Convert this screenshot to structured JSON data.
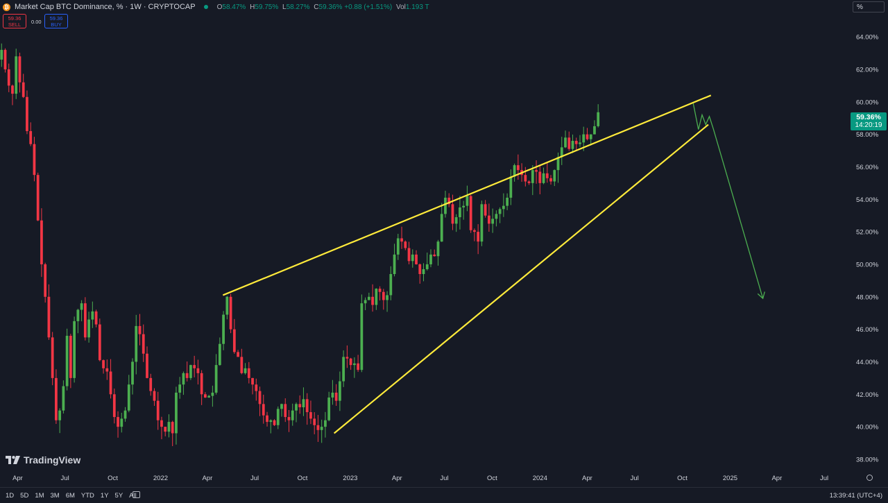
{
  "header": {
    "coin_glyph": "₿",
    "title": "Market Cap BTC Dominance, % · 1W · CRYPTOCAP",
    "open_label": "O",
    "open": "58.47%",
    "high_label": "H",
    "high": "59.75%",
    "low_label": "L",
    "low": "58.27%",
    "close_label": "C",
    "close": "59.36%",
    "change": "+0.88 (+1.51%)",
    "vol_label": "Vol",
    "vol": "1.193 T"
  },
  "trade": {
    "sell_price": "59.36",
    "sell_label": "SELL",
    "spread": "0.00",
    "buy_price": "59.36",
    "buy_label": "BUY"
  },
  "unit_label": "%",
  "price_tag": {
    "price": "59.36%",
    "countdown": "14:20:19",
    "color": "#089981"
  },
  "logo": {
    "text": "TradingView"
  },
  "bottom": {
    "ranges": [
      "1D",
      "5D",
      "1M",
      "3M",
      "6M",
      "YTD",
      "1Y",
      "5Y",
      "All"
    ],
    "clock": "13:39:41 (UTC+4)",
    "calendar_icon": "calendar-icon",
    "settings_icon": "gear-icon"
  },
  "colors": {
    "up": "#4caf50",
    "down": "#f23645",
    "trendline": "#ffeb3b",
    "projection": "#4caf50",
    "background": "#161a25"
  },
  "chart_data": {
    "type": "candlestick",
    "title": "Market Cap BTC Dominance, % · 1W · CRYPTOCAP",
    "ylabel": "%",
    "ylim": [
      37.4,
      65.5
    ],
    "x_range": [
      "2021-02-26",
      "2025-08-10"
    ],
    "yticks": [
      "64.00%",
      "62.00%",
      "60.00%",
      "58.00%",
      "56.00%",
      "54.00%",
      "52.00%",
      "50.00%",
      "48.00%",
      "46.00%",
      "44.00%",
      "42.00%",
      "40.00%",
      "38.00%"
    ],
    "ytick_values": [
      64,
      62,
      60,
      58,
      56,
      54,
      52,
      50,
      48,
      46,
      44,
      42,
      40,
      38
    ],
    "xticks": [
      {
        "label": "Apr",
        "date": "2021-04-01"
      },
      {
        "label": "Jul",
        "date": "2021-07-01"
      },
      {
        "label": "Oct",
        "date": "2021-10-01"
      },
      {
        "label": "2022",
        "date": "2022-01-01"
      },
      {
        "label": "Apr",
        "date": "2022-04-01"
      },
      {
        "label": "Jul",
        "date": "2022-07-01"
      },
      {
        "label": "Oct",
        "date": "2022-10-01"
      },
      {
        "label": "2023",
        "date": "2023-01-01"
      },
      {
        "label": "Apr",
        "date": "2023-04-01"
      },
      {
        "label": "Jul",
        "date": "2023-07-01"
      },
      {
        "label": "Oct",
        "date": "2023-10-01"
      },
      {
        "label": "2024",
        "date": "2024-01-01"
      },
      {
        "label": "Apr",
        "date": "2024-04-01"
      },
      {
        "label": "Jul",
        "date": "2024-07-01"
      },
      {
        "label": "Oct",
        "date": "2024-10-01"
      },
      {
        "label": "2025",
        "date": "2025-01-01"
      },
      {
        "label": "Apr",
        "date": "2025-04-01"
      },
      {
        "label": "Jul",
        "date": "2025-07-01"
      }
    ],
    "series_start_date": "2021-03-01",
    "candle_interval_days": 7,
    "closes": [
      63.2,
      62.0,
      61.0,
      60.5,
      62.8,
      61.2,
      60.3,
      58.2,
      57.4,
      55.5,
      52.7,
      50.0,
      48.0,
      45.5,
      43.0,
      40.4,
      41.0,
      42.5,
      45.6,
      43.0,
      46.5,
      47.2,
      47.6,
      45.5,
      46.6,
      47.1,
      46.3,
      44.1,
      43.6,
      43.4,
      42.0,
      40.6,
      40.0,
      40.5,
      41.0,
      42.6,
      44.0,
      46.2,
      45.7,
      44.5,
      43.0,
      42.2,
      41.6,
      40.4,
      40.0,
      39.7,
      40.3,
      39.6,
      42.1,
      42.6,
      43.3,
      43.0,
      43.8,
      43.6,
      43.3,
      42.0,
      41.8,
      41.9,
      42.1,
      43.8,
      45.1,
      46.9,
      48.0,
      46.0,
      44.6,
      44.3,
      43.3,
      43.6,
      43.0,
      42.6,
      42.2,
      41.4,
      40.7,
      40.3,
      40.4,
      40.1,
      41.1,
      41.4,
      40.6,
      40.4,
      41.0,
      41.4,
      41.2,
      41.7,
      40.9,
      40.5,
      40.1,
      39.8,
      40.0,
      40.4,
      41.8,
      42.1,
      41.6,
      42.8,
      44.3,
      44.2,
      43.8,
      43.9,
      43.5,
      47.6,
      47.8,
      48.0,
      47.5,
      48.5,
      48.3,
      47.8,
      48.1,
      49.4,
      50.6,
      51.6,
      51.4,
      51.0,
      50.2,
      50.6,
      50.0,
      49.4,
      49.7,
      50.0,
      50.6,
      50.5,
      51.4,
      53.1,
      54.1,
      53.7,
      52.5,
      52.9,
      53.5,
      53.6,
      54.2,
      52.1,
      52.0,
      51.4,
      53.7,
      53.0,
      52.5,
      52.8,
      53.1,
      53.4,
      53.6,
      54.1,
      55.4,
      56.1,
      55.8,
      55.5,
      55.1,
      55.0,
      55.8,
      55.7,
      55.0,
      55.6,
      55.3,
      55.1,
      55.8,
      56.6,
      57.2,
      57.8,
      57.1,
      57.6,
      57.4,
      57.5,
      58.0,
      57.7,
      58.0,
      58.5,
      59.36
    ],
    "trendlines": [
      {
        "from": {
          "date": "2022-05-01",
          "value": 48.1
        },
        "to": {
          "date": "2024-11-25",
          "value": 60.4
        },
        "color": "#ffeb3b"
      },
      {
        "from": {
          "date": "2022-12-01",
          "value": 39.6
        },
        "to": {
          "date": "2024-11-20",
          "value": 58.6
        },
        "color": "#ffeb3b"
      }
    ],
    "projection": [
      {
        "date": "2024-10-22",
        "value": 59.9
      },
      {
        "date": "2024-11-01",
        "value": 58.3
      },
      {
        "date": "2024-11-08",
        "value": 59.2
      },
      {
        "date": "2024-11-15",
        "value": 58.6
      },
      {
        "date": "2024-11-22",
        "value": 59.1
      },
      {
        "date": "2024-11-30",
        "value": 58.3
      },
      {
        "date": "2025-03-05",
        "value": 47.9
      }
    ],
    "legend": "none",
    "grid": false
  }
}
